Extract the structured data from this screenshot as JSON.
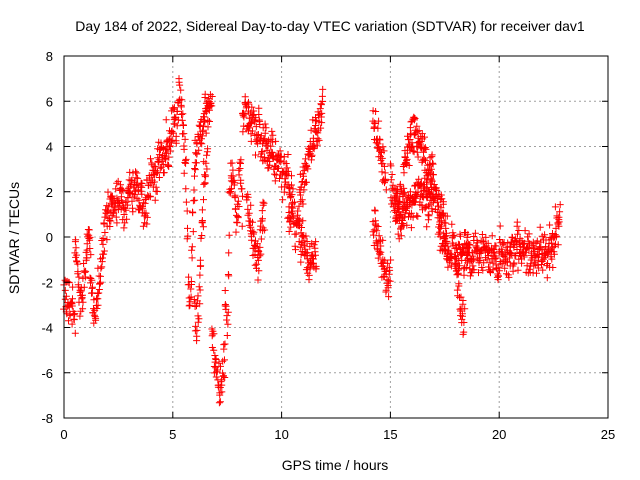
{
  "chart_data": {
    "type": "scatter",
    "title": "Day 184 of 2022, Sidereal Day-to-day VTEC variation (SDTVAR) for receiver dav1",
    "xlabel": "GPS time / hours",
    "ylabel": "SDTVAR / TECUs",
    "xlim": [
      0,
      25
    ],
    "ylim": [
      -8,
      8
    ],
    "xticks": [
      0,
      5,
      10,
      15,
      20,
      25
    ],
    "yticks": [
      -8,
      -6,
      -4,
      -2,
      0,
      2,
      4,
      6,
      8
    ],
    "grid": true,
    "marker": "+",
    "color": "#ff0000",
    "series_name": "SDTVAR",
    "segments": [
      {
        "t0": 0.0,
        "t1": 0.5,
        "v": [
          -2.4,
          -3.6
        ]
      },
      {
        "t0": 0.5,
        "t1": 1.2,
        "v": [
          -0.6,
          -1.0,
          -1.6,
          -2.6,
          -3.0,
          -2.2,
          -1.4,
          -0.4,
          0.2,
          0.3
        ]
      },
      {
        "t0": 1.2,
        "t1": 2.2,
        "v": [
          -1.5,
          -2.5,
          -3.3,
          -2.8,
          -1.8,
          -0.9,
          0.2,
          0.8,
          1.0,
          1.3
        ]
      },
      {
        "t0": 2.2,
        "t1": 3.6,
        "v": [
          1.0,
          1.6,
          1.4,
          2.0,
          1.2,
          1.7,
          2.2,
          1.8,
          2.6,
          1.5,
          2.0
        ]
      },
      {
        "t0": 3.6,
        "t1": 4.8,
        "v": [
          1.2,
          1.0,
          1.8,
          2.4,
          3.0,
          2.6,
          3.4,
          3.8,
          3.2,
          4.0,
          3.6
        ]
      },
      {
        "t0": 4.8,
        "t1": 5.6,
        "v": [
          3.8,
          4.3,
          4.8,
          5.2,
          4.6,
          6.4,
          5.6,
          4.2,
          3.5
        ]
      },
      {
        "t0": 5.6,
        "t1": 6.0,
        "v": [
          2.8,
          1.0,
          -0.8,
          -2.2,
          -3.0,
          -2.4,
          -1.0,
          0.6,
          1.6,
          2.6
        ]
      },
      {
        "t0": 6.0,
        "t1": 6.6,
        "v": [
          -3.2,
          -4.2,
          -3.4,
          -1.6,
          0.4,
          2.0,
          3.2,
          4.2
        ]
      },
      {
        "t0": 6.0,
        "t1": 6.8,
        "v": [
          3.4,
          4.0,
          4.6,
          5.0,
          5.4,
          5.6,
          5.8,
          6.0
        ]
      },
      {
        "t0": 6.8,
        "t1": 7.4,
        "v": [
          -4.4,
          -5.2,
          -6.2,
          -7.0,
          -6.0,
          -5.0
        ]
      },
      {
        "t0": 7.4,
        "t1": 8.2,
        "v": [
          -3.2,
          -3.6,
          2.4,
          3.0,
          1.6,
          0.6,
          3.4,
          1.0
        ]
      },
      {
        "t0": 8.2,
        "t1": 9.6,
        "v": [
          5.2,
          5.8,
          4.8,
          5.4,
          4.2,
          4.8,
          4.0,
          4.6,
          3.6,
          4.0
        ]
      },
      {
        "t0": 8.4,
        "t1": 9.2,
        "v": [
          2.0,
          0.4,
          -0.4,
          -1.4,
          0.2,
          1.0
        ]
      },
      {
        "t0": 9.6,
        "t1": 10.5,
        "v": [
          3.6,
          3.2,
          3.4,
          2.8,
          3.0,
          2.2,
          1.8
        ]
      },
      {
        "t0": 10.3,
        "t1": 11.0,
        "v": [
          0.8,
          0.4,
          1.4,
          0.2,
          0.6,
          -0.4,
          0.2
        ]
      },
      {
        "t0": 11.0,
        "t1": 11.6,
        "v": [
          -0.2,
          -0.8,
          -1.2,
          -0.6,
          -1.4
        ]
      },
      {
        "t0": 10.8,
        "t1": 11.9,
        "v": [
          1.6,
          2.6,
          3.4,
          4.2,
          5.0,
          5.8
        ]
      },
      {
        "t0": 14.2,
        "t1": 14.8,
        "v": [
          5.2,
          4.4,
          3.8,
          3.2,
          2.4
        ]
      },
      {
        "t0": 14.2,
        "t1": 15.0,
        "v": [
          0.4,
          0.2,
          -0.6,
          -1.6,
          -2.0,
          -1.4
        ]
      },
      {
        "t0": 15.0,
        "t1": 15.6,
        "v": [
          2.8,
          2.0,
          1.4,
          0.8,
          0.2,
          1.6
        ]
      },
      {
        "t0": 15.6,
        "t1": 16.8,
        "v": [
          2.8,
          3.6,
          4.2,
          4.6,
          4.4,
          3.8,
          3.2,
          2.4
        ]
      },
      {
        "t0": 15.2,
        "t1": 17.0,
        "v": [
          1.4,
          1.8,
          1.2,
          1.6,
          2.0,
          1.4,
          1.8
        ]
      },
      {
        "t0": 16.8,
        "t1": 17.6,
        "v": [
          3.6,
          2.8,
          2.0,
          1.2,
          0.6,
          0.2
        ]
      },
      {
        "t0": 17.2,
        "t1": 18.6,
        "v": [
          0.4,
          -0.2,
          -0.8,
          -0.4,
          -1.0,
          -0.6,
          -0.2
        ]
      },
      {
        "t0": 18.0,
        "t1": 18.4,
        "v": [
          -1.2,
          -2.0,
          -2.8,
          -3.6
        ]
      },
      {
        "t0": 18.5,
        "t1": 20.0,
        "v": [
          -0.8,
          -1.2,
          -0.4,
          -1.0,
          -0.2,
          -1.4,
          -0.6,
          -1.8
        ]
      },
      {
        "t0": 20.0,
        "t1": 22.4,
        "v": [
          -0.6,
          -1.0,
          -0.4,
          -0.8,
          -0.6,
          -1.0,
          -0.5,
          -0.7
        ]
      },
      {
        "t0": 22.4,
        "t1": 22.8,
        "v": [
          -0.6,
          -0.2,
          0.2,
          0.6,
          0.9
        ]
      }
    ]
  }
}
